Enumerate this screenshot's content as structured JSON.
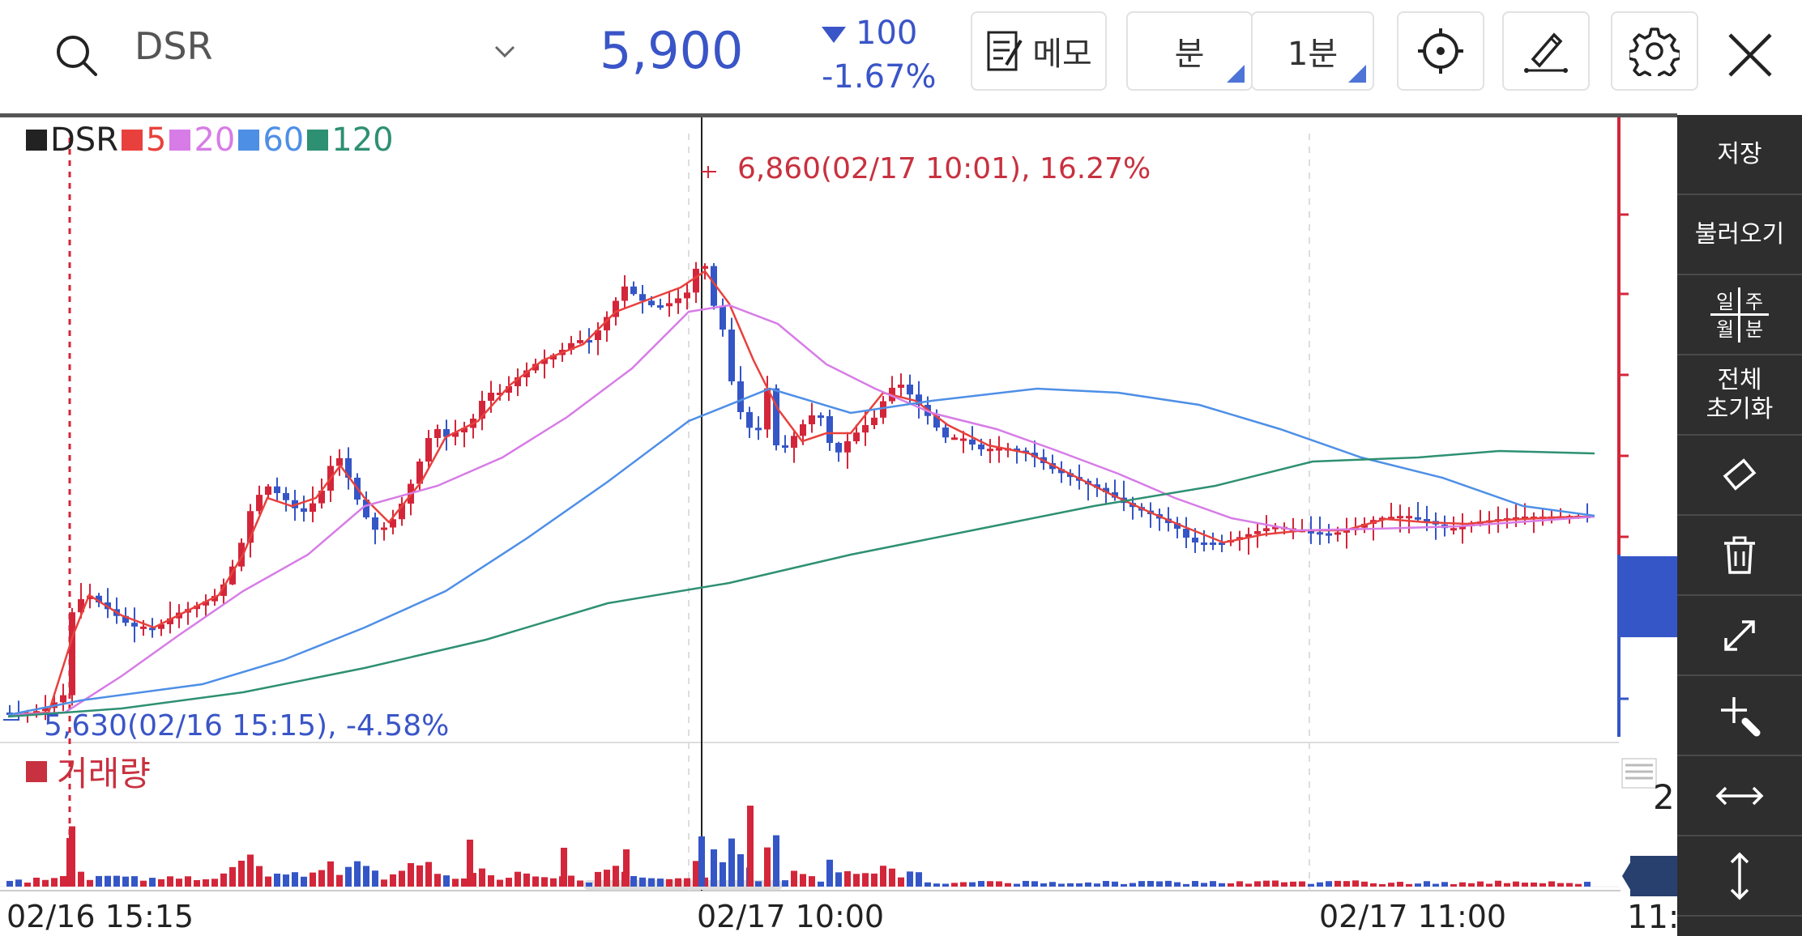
{
  "header": {
    "symbol": "DSR",
    "price": "5,900",
    "change": "100",
    "change_pct": "-1.67%",
    "memo_label": "메모",
    "period_unit": "분",
    "period_value": "1분"
  },
  "legend": {
    "symbol": "DSR",
    "ma5": "5",
    "ma20": "20",
    "ma60": "60",
    "ma120": "120"
  },
  "annotations": {
    "high": "6,860(02/17 10:01), 16.27%",
    "low": "5,630(02/16 15:15), -4.58%"
  },
  "volume_label": "거래량",
  "x_labels": [
    "02/16 15:15",
    "02/17 10:00",
    "02/17 11:00"
  ],
  "right_axis_partial": [
    "2",
    "11:"
  ],
  "sidebar": {
    "items": [
      "저장",
      "불러오기",
      "일주월분",
      "전체 초기화",
      "eraser-icon",
      "trash-icon",
      "expand-icon",
      "add-draw-icon",
      "h-resize-icon",
      "v-resize-icon"
    ],
    "save": "저장",
    "load": "불러오기",
    "period_top_left": "일",
    "period_top_right": "주",
    "period_bottom_left": "월",
    "period_bottom_right": "분",
    "reset_line1": "전체",
    "reset_line2": "초기화"
  },
  "colors": {
    "up": "#d3263a",
    "down": "#3556c6",
    "ma5": "#e8413d",
    "ma20": "#d77ce6",
    "ma60": "#4e8fe6",
    "ma120": "#2e9072"
  },
  "chart_data": {
    "type": "candlestick",
    "symbol": "DSR",
    "interval": "1분",
    "price_range": [
      5630,
      6860
    ],
    "high": {
      "price": 6860,
      "time": "02/17 10:01",
      "pct": 16.27
    },
    "low": {
      "price": 5630,
      "time": "02/16 15:15",
      "pct": -4.58
    },
    "moving_averages": [
      5,
      20,
      60,
      120
    ],
    "current_price": 5900,
    "change": -100,
    "change_pct": -1.67
  }
}
